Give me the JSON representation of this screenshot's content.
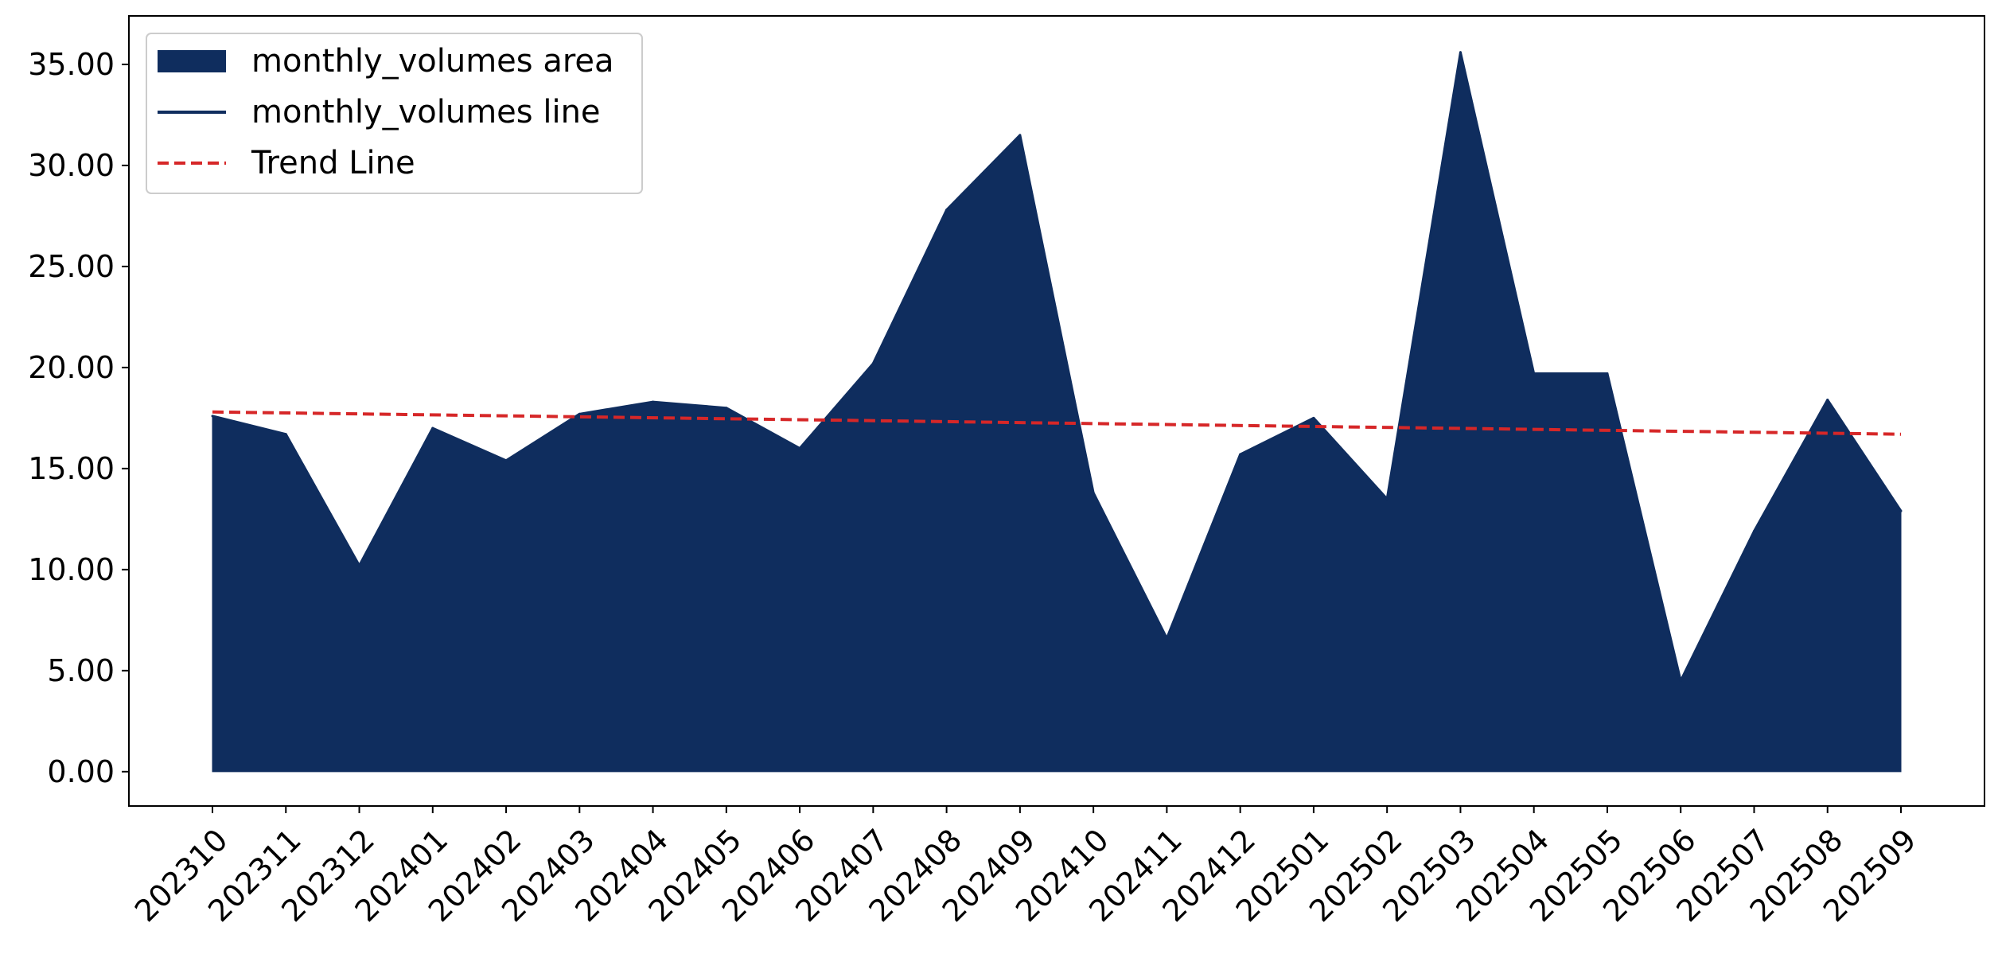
{
  "chart_data": {
    "type": "area",
    "title": "",
    "xlabel": "",
    "ylabel": "",
    "categories": [
      "202310",
      "202311",
      "202312",
      "202401",
      "202402",
      "202403",
      "202404",
      "202405",
      "202406",
      "202407",
      "202408",
      "202409",
      "202410",
      "202411",
      "202412",
      "202501",
      "202502",
      "202503",
      "202504",
      "202505",
      "202506",
      "202507",
      "202508",
      "202509"
    ],
    "series": [
      {
        "name": "monthly_volumes area",
        "kind": "area",
        "color": "#0f2d5e",
        "values": [
          17.6,
          16.7,
          10.2,
          17.0,
          15.4,
          17.7,
          18.3,
          18.0,
          16.0,
          20.2,
          27.8,
          31.5,
          13.8,
          6.6,
          15.7,
          17.5,
          13.5,
          35.6,
          19.7,
          19.7,
          4.5,
          11.9,
          18.4,
          12.9
        ]
      },
      {
        "name": "monthly_volumes line",
        "kind": "line",
        "color": "#0f2d5e",
        "values": [
          17.6,
          16.7,
          10.2,
          17.0,
          15.4,
          17.7,
          18.3,
          18.0,
          16.0,
          20.2,
          27.8,
          31.5,
          13.8,
          6.6,
          15.7,
          17.5,
          13.5,
          35.6,
          19.7,
          19.7,
          4.5,
          11.9,
          18.4,
          12.9
        ]
      },
      {
        "name": "Trend Line",
        "kind": "dashed-line",
        "color": "#d62728",
        "start": 17.8,
        "end": 16.7
      }
    ],
    "ylim": [
      -1.7,
      37.4
    ],
    "yticks": [
      0,
      5,
      10,
      15,
      20,
      25,
      30,
      35
    ],
    "ytick_labels": [
      "0.00",
      "5.00",
      "10.00",
      "15.00",
      "20.00",
      "25.00",
      "30.00",
      "35.00"
    ],
    "grid": false,
    "legend_position": "upper left"
  }
}
